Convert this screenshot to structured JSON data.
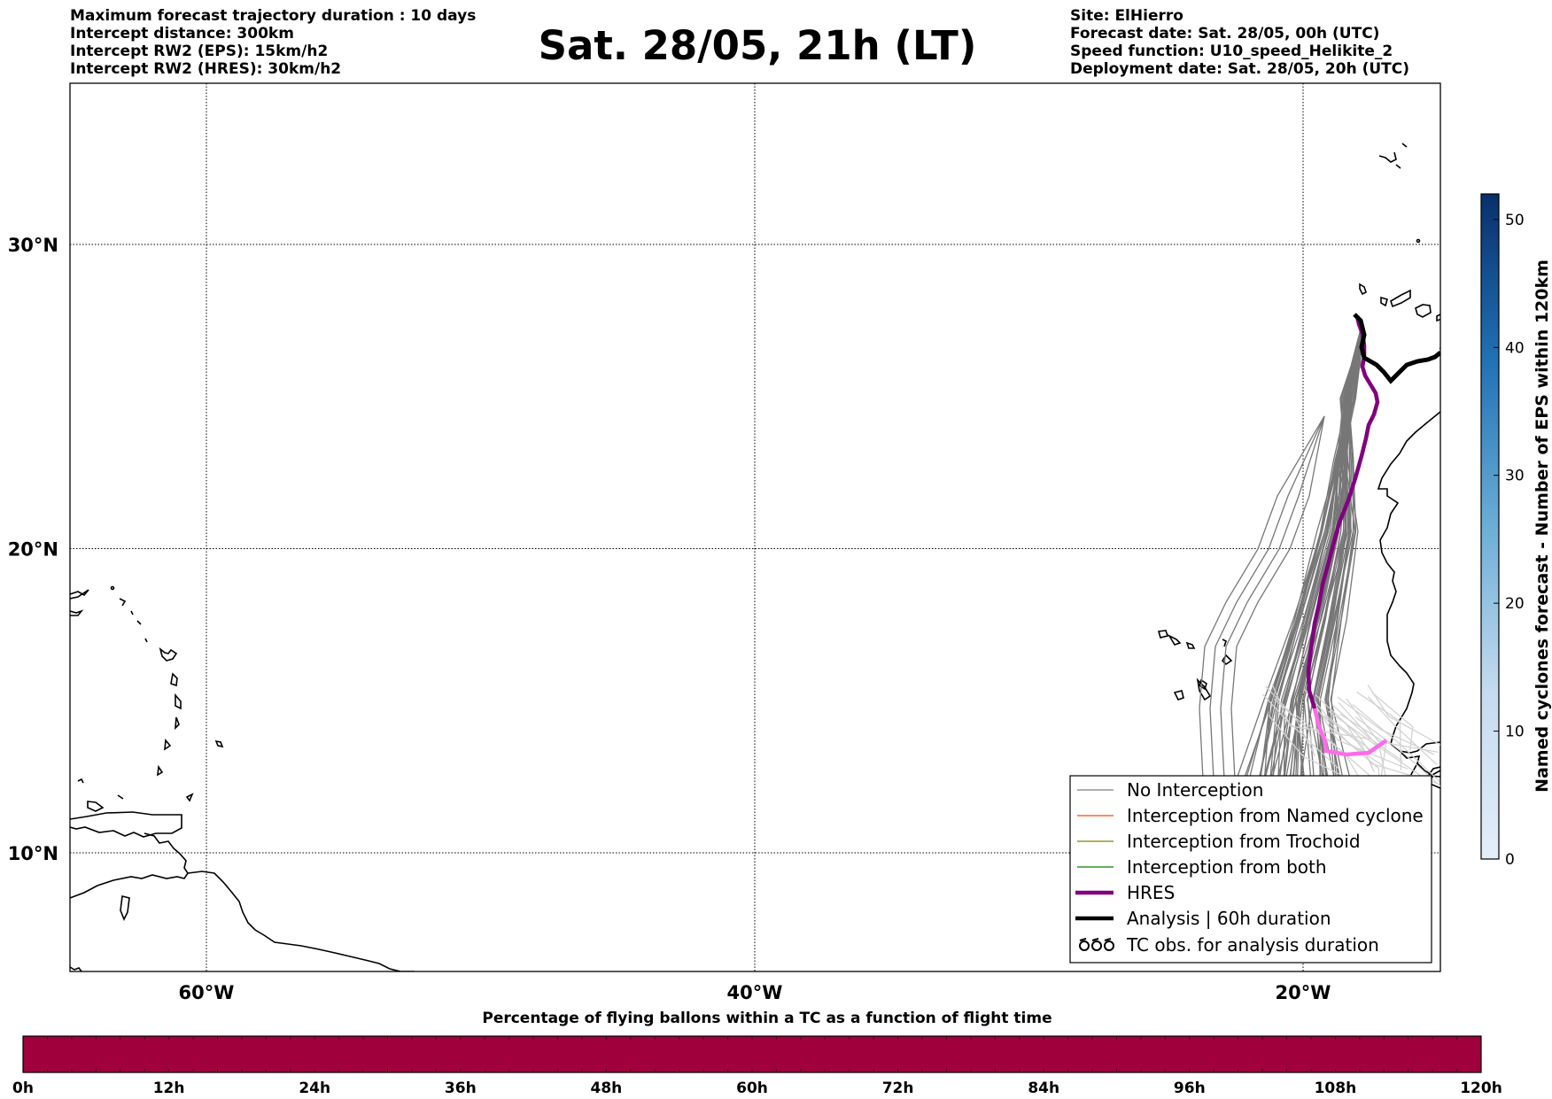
{
  "header": {
    "left_lines": [
      "Maximum forecast trajectory duration : 10 days",
      "Intercept distance: 300km",
      "Intercept RW2 (EPS):  15km/h2",
      "Intercept RW2 (HRES): 30km/h2"
    ],
    "title": "Sat. 28/05, 21h (LT)",
    "right_lines": [
      "Site: ElHierro",
      "Forecast date: Sat. 28/05, 00h (UTC)",
      "Speed function: U10_speed_Helikite_2",
      "Deployment date: Sat. 28/05, 20h (UTC)"
    ]
  },
  "map": {
    "lat_ticks": [
      {
        "label": "30°N",
        "value": 30
      },
      {
        "label": "20°N",
        "value": 20
      },
      {
        "label": "10°N",
        "value": 10
      }
    ],
    "lon_ticks": [
      {
        "label": "60°W",
        "value": -60
      },
      {
        "label": "40°W",
        "value": -40
      },
      {
        "label": "20°W",
        "value": -20
      }
    ]
  },
  "legend": {
    "items": [
      {
        "label": "No Interception",
        "color": "#808080",
        "style": "thin"
      },
      {
        "label": "Interception from Named cyclone",
        "color": "#ff4500",
        "style": "thin"
      },
      {
        "label": "Interception from Trochoid",
        "color": "#808000",
        "style": "thin"
      },
      {
        "label": "Interception from both",
        "color": "#008000",
        "style": "thin"
      },
      {
        "label": "HRES",
        "color": "#800080",
        "style": "thick"
      },
      {
        "label": "Analysis | 60h duration",
        "color": "#000000",
        "style": "thick"
      },
      {
        "label": "TC obs. for analysis duration",
        "color": "#000000",
        "style": "symbol"
      }
    ]
  },
  "colorbar": {
    "title": "Named cyclones forecast - Number of EPS within 120km",
    "ticks": [
      "0",
      "10",
      "20",
      "30",
      "40",
      "50"
    ],
    "min": 0,
    "max": 52,
    "colors": [
      "#e3eef8",
      "#08306b"
    ]
  },
  "time_bar": {
    "title": "Percentage of flying ballons within a TC as a function of flight time",
    "ticks": [
      "0h",
      "12h",
      "24h",
      "36h",
      "48h",
      "60h",
      "72h",
      "84h",
      "96h",
      "108h",
      "120h"
    ],
    "fill_color": "#a0003c",
    "segments": 60
  }
}
